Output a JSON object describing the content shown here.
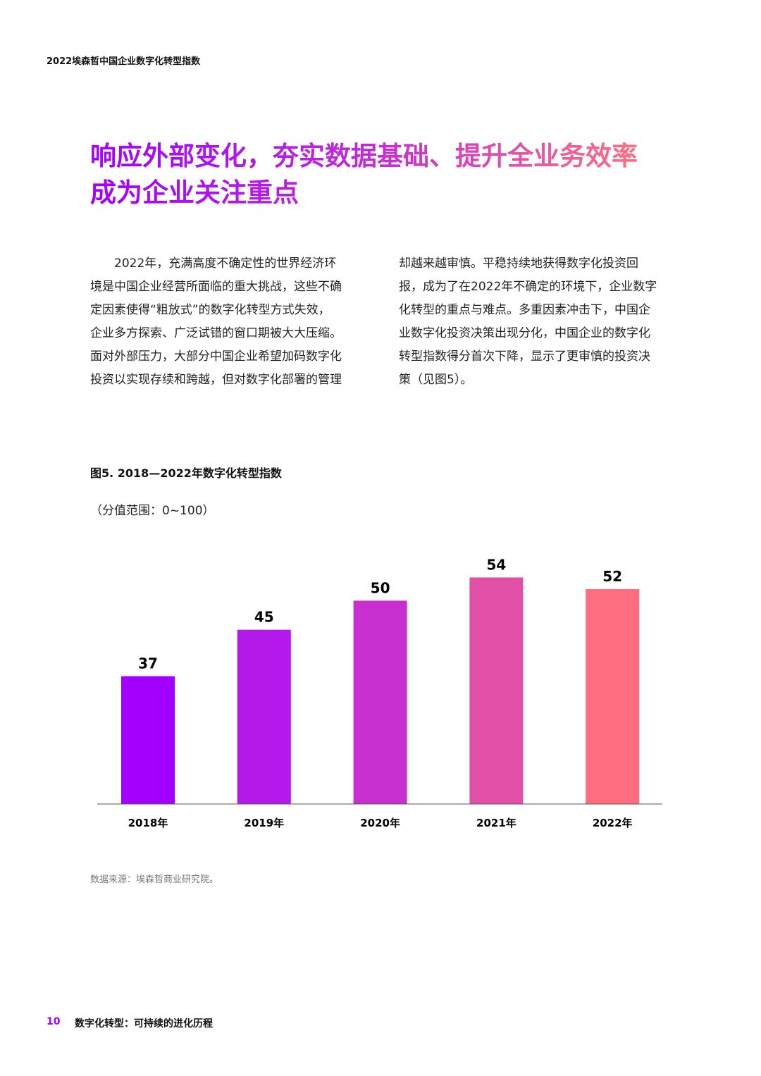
{
  "header": {
    "title": "2022埃森哲中国企业数字化转型指数"
  },
  "headline": {
    "lines": [
      "响应外部变化，夯实数据基础、提升全业务效率",
      "成为企业关注重点"
    ]
  },
  "body": {
    "columns": [
      [
        "2022年，充满高度不确定性的世界经济环",
        "境是中国企业经营所面临的重大挑战，这些不确",
        "定因素使得“粗放式”的数字化转型方式失效，",
        "企业多方探索、广泛试错的窗口期被大大压缩。",
        "面对外部压力，大部分中国企业希望加码数字化",
        "投资以实现存续和跨越，但对数字化部署的管理"
      ],
      [
        "却越来越审慎。平稳持续地获得数字化投资回",
        "报，成为了在2022年不确定的环境下，企业数字",
        "化转型的重点与难点。多重因素冲击下，中国企",
        "业数字化投资决策出现分化，中国企业的数字化",
        "转型指数得分首次下降，显示了更审慎的投资决",
        "策（见图5）。"
      ]
    ]
  },
  "chart_data": {
    "type": "bar",
    "title": "图5. 2018—2022年数字化转型指数",
    "subtitle": "（分值范围：0~100）",
    "categories": [
      "2018年",
      "2019年",
      "2020年",
      "2021年",
      "2022年"
    ],
    "values": [
      37,
      45,
      50,
      54,
      52
    ],
    "colors": [
      "#a100ff",
      "#b418ea",
      "#c72fcf",
      "#e14fa6",
      "#ff6e80"
    ],
    "ylim": [
      15,
      60
    ]
  },
  "source": "数据来源：埃森哲商业研究院。",
  "footer": {
    "page": "10",
    "title": "数字化转型：可持续的进化历程"
  }
}
